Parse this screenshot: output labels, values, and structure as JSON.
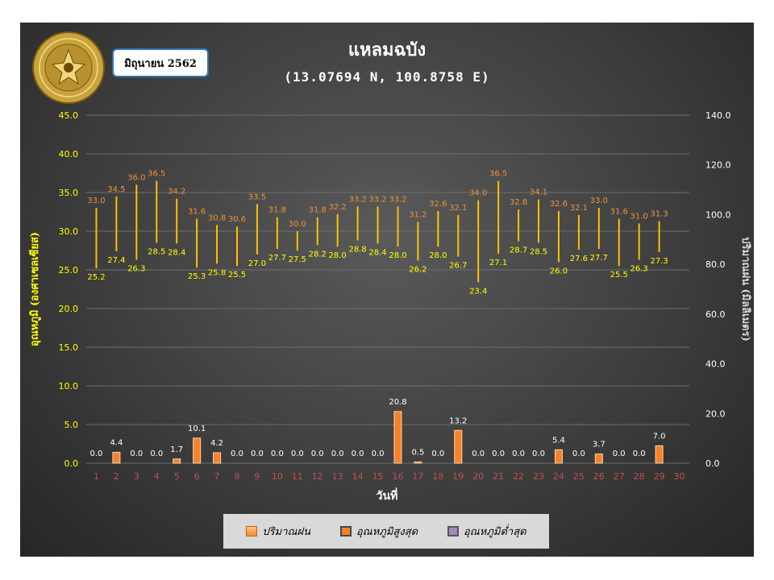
{
  "header": {
    "date_label": "มิถุนายน 2562",
    "title": "แหลมฉบัง",
    "subtitle": "(13.07694 N, 100.8758 E)",
    "logo_text": "METEOROLOGICAL DEPARTMENT"
  },
  "legend": {
    "rain": "ปริมาณฝน",
    "tmax": "อุณหภูมิสูงสุด",
    "tmin": "อุณหภูมิต่ำสุด"
  },
  "colors": {
    "tmax_label": "#f0923a",
    "tmin_label": "#ffff00",
    "range_line": "#ffc000",
    "bar_fill": "#f5822a",
    "axis_text": "#ffff00",
    "x_tick_text": "#c0504d",
    "grid": "#6e6e6e"
  },
  "chart_data": {
    "type": "bar",
    "xlabel": "วันที่",
    "ylabel_left": "อุณหภูมิ (องศาเซลเซียส)",
    "ylabel_right": "ปริมาณฝน (มิลลิเมตร)",
    "ylim_left": [
      0,
      45
    ],
    "ylim_right": [
      0,
      140
    ],
    "left_ticks": [
      "0.0",
      "5.0",
      "10.0",
      "15.0",
      "20.0",
      "25.0",
      "30.0",
      "35.0",
      "40.0",
      "45.0"
    ],
    "right_ticks": [
      "0.0",
      "20.0",
      "40.0",
      "60.0",
      "80.0",
      "100.0",
      "120.0",
      "140.0"
    ],
    "categories": [
      "1",
      "2",
      "3",
      "4",
      "5",
      "6",
      "7",
      "8",
      "9",
      "10",
      "11",
      "12",
      "13",
      "14",
      "15",
      "16",
      "17",
      "18",
      "19",
      "20",
      "21",
      "22",
      "23",
      "24",
      "25",
      "26",
      "27",
      "28",
      "29",
      "30"
    ],
    "series": [
      {
        "name": "ปริมาณฝน",
        "axis": "right",
        "values": [
          0.0,
          4.4,
          0.0,
          0.0,
          1.7,
          10.1,
          4.2,
          0.0,
          0.0,
          0.0,
          0.0,
          0.0,
          0.0,
          0.0,
          0.0,
          20.8,
          0.5,
          0.0,
          13.2,
          0.0,
          0.0,
          0.0,
          0.0,
          5.4,
          0.0,
          3.7,
          0.0,
          0.0,
          7.0,
          null
        ]
      },
      {
        "name": "อุณหภูมิสูงสุด",
        "axis": "left",
        "values": [
          33.0,
          34.5,
          36.0,
          36.5,
          34.2,
          31.6,
          30.8,
          30.6,
          33.5,
          31.8,
          30.0,
          31.8,
          32.2,
          33.2,
          33.2,
          33.2,
          31.2,
          32.6,
          32.1,
          34.0,
          36.5,
          32.8,
          34.1,
          32.6,
          32.1,
          33.0,
          31.6,
          31.0,
          31.3,
          null
        ]
      },
      {
        "name": "อุณหภูมิต่ำสุด",
        "axis": "left",
        "values": [
          25.2,
          27.4,
          26.3,
          28.5,
          28.4,
          25.3,
          25.8,
          25.5,
          27.0,
          27.7,
          27.5,
          28.2,
          28.0,
          28.8,
          28.4,
          28.0,
          26.2,
          28.0,
          26.7,
          23.4,
          27.1,
          28.7,
          28.5,
          26.0,
          27.6,
          27.7,
          25.5,
          26.3,
          27.3,
          null
        ]
      }
    ]
  }
}
